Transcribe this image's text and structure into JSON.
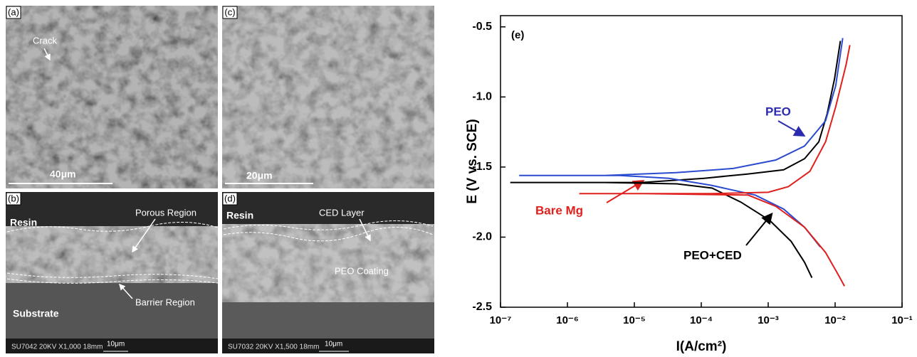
{
  "panels": [
    {
      "label": "(a)",
      "texts": [
        "Crack",
        "40μm"
      ]
    },
    {
      "label": "(c)",
      "texts": [
        "20μm"
      ]
    },
    {
      "label": "(b)",
      "texts": [
        "Resin",
        "Porous Region",
        "Barrier Region",
        "Substrate",
        "10μm",
        "SU7042 20KV X1,000 18mm"
      ]
    },
    {
      "label": "(d)",
      "texts": [
        "Resin",
        "CED Layer",
        "PEO Coating",
        "10μm",
        "SU7032 20KV X1,500 18mm"
      ]
    }
  ],
  "chart_data": {
    "type": "line",
    "xscale": "log",
    "xlabel": "I(A/cm²)",
    "ylabel": "E (V vs. SCE)",
    "xlim": [
      1e-07,
      0.1
    ],
    "ylim": [
      -2.5,
      -0.42
    ],
    "xticks": [
      {
        "value": 1e-07,
        "label": "10⁻⁷"
      },
      {
        "value": 1e-06,
        "label": "10⁻⁶"
      },
      {
        "value": 1e-05,
        "label": "10⁻⁵"
      },
      {
        "value": 0.0001,
        "label": "10⁻⁴"
      },
      {
        "value": 0.001,
        "label": "10⁻³"
      },
      {
        "value": 0.01,
        "label": "10⁻²"
      },
      {
        "value": 0.1,
        "label": "10⁻¹"
      }
    ],
    "yticks": [
      -0.5,
      {
        "value": -1,
        "label": "-1.0"
      },
      -1.5,
      {
        "value": -2,
        "label": "-2.0"
      },
      -2.5
    ],
    "annotations": [
      {
        "text": "(e)",
        "color": "#000000"
      },
      {
        "text": "PEO",
        "color": "#2b2bb0"
      },
      {
        "text": "Bare Mg",
        "color": "#e0201c"
      },
      {
        "text": "PEO+CED",
        "color": "#000000"
      }
    ],
    "series": [
      {
        "name": "PEO+CED",
        "color": "#000000",
        "x": [
          0.0045,
          0.0035,
          0.0022,
          0.00105,
          0.00039,
          0.000145,
          4.3e-05,
          3.6e-06,
          1.4e-07,
          1.3e-05,
          0.00011,
          0.00049,
          0.0017,
          0.0035,
          0.0057,
          0.0076,
          0.0098,
          0.012
        ],
        "values": [
          -2.29,
          -2.18,
          -2.03,
          -1.88,
          -1.75,
          -1.65,
          -1.62,
          -1.61,
          -1.61,
          -1.61,
          -1.58,
          -1.55,
          -1.52,
          -1.44,
          -1.32,
          -1.12,
          -0.87,
          -0.6
        ]
      },
      {
        "name": "PEO",
        "color": "#2b4bd0",
        "x": [
          0.006,
          0.0035,
          0.0017,
          0.00064,
          0.00014,
          3.3e-05,
          6e-06,
          1.9e-07,
          3.6e-06,
          4.2e-05,
          0.0003,
          0.0013,
          0.0035,
          0.0072,
          0.0102,
          0.013
        ],
        "values": [
          -2.07,
          -1.93,
          -1.8,
          -1.7,
          -1.63,
          -1.58,
          -1.56,
          -1.56,
          -1.56,
          -1.54,
          -1.51,
          -1.45,
          -1.35,
          -1.17,
          -0.92,
          -0.58
        ]
      },
      {
        "name": "Bare Mg",
        "color": "#e0201c",
        "x": [
          0.0138,
          0.0115,
          0.0072,
          0.0035,
          0.0013,
          0.0005,
          1.4e-05,
          1.5e-06,
          0.00014,
          0.001,
          0.002,
          0.0042,
          0.0072,
          0.0102,
          0.0146,
          0.0166
        ],
        "values": [
          -2.35,
          -2.28,
          -2.11,
          -1.93,
          -1.78,
          -1.7,
          -1.69,
          -1.69,
          -1.69,
          -1.68,
          -1.64,
          -1.53,
          -1.32,
          -1.07,
          -0.77,
          -0.63
        ]
      }
    ]
  }
}
